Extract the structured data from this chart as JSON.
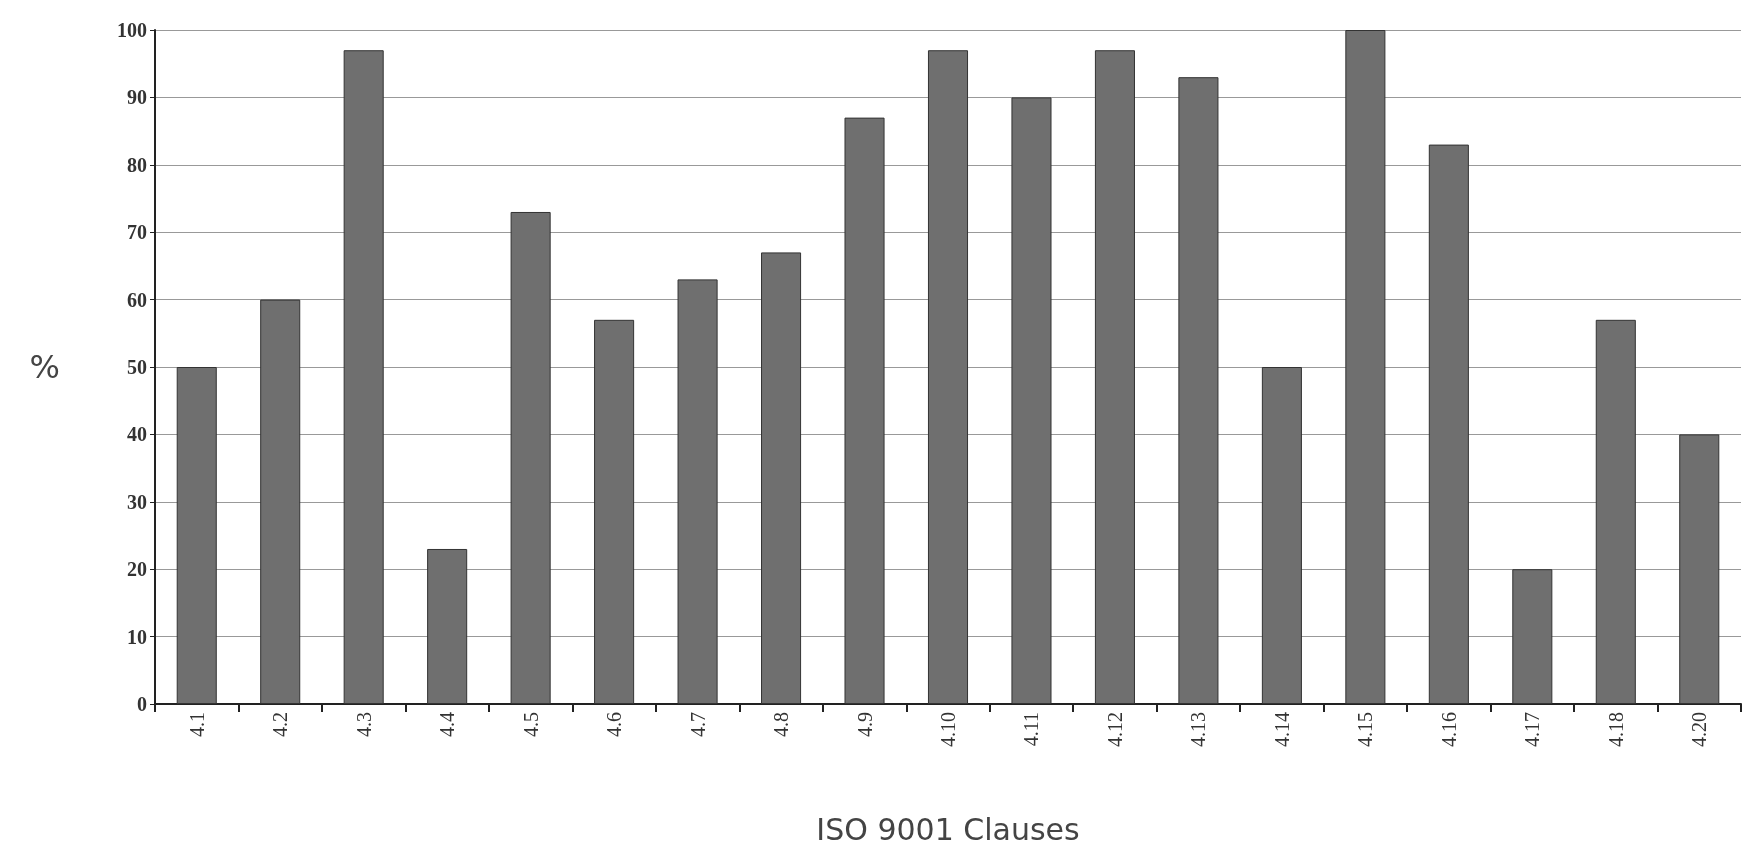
{
  "chart_data": {
    "type": "bar",
    "xlabel": "ISO 9001 Clauses",
    "ylabel": "%",
    "categories": [
      "4.1",
      "4.2",
      "4.3",
      "4.4",
      "4.5",
      "4.6",
      "4.7",
      "4.8",
      "4.9",
      "4.10",
      "4.11",
      "4.12",
      "4.13",
      "4.14",
      "4.15",
      "4.16",
      "4.17",
      "4.18",
      "4.20"
    ],
    "values": [
      50,
      60,
      97,
      23,
      73,
      57,
      63,
      67,
      87,
      97,
      90,
      97,
      93,
      50,
      100,
      83,
      20,
      57,
      40
    ],
    "color": "#6f6f6f",
    "ylim": [
      0,
      100
    ],
    "yticks": [
      0,
      10,
      20,
      30,
      40,
      50,
      60,
      70,
      80,
      90,
      100
    ],
    "grid": "y"
  }
}
